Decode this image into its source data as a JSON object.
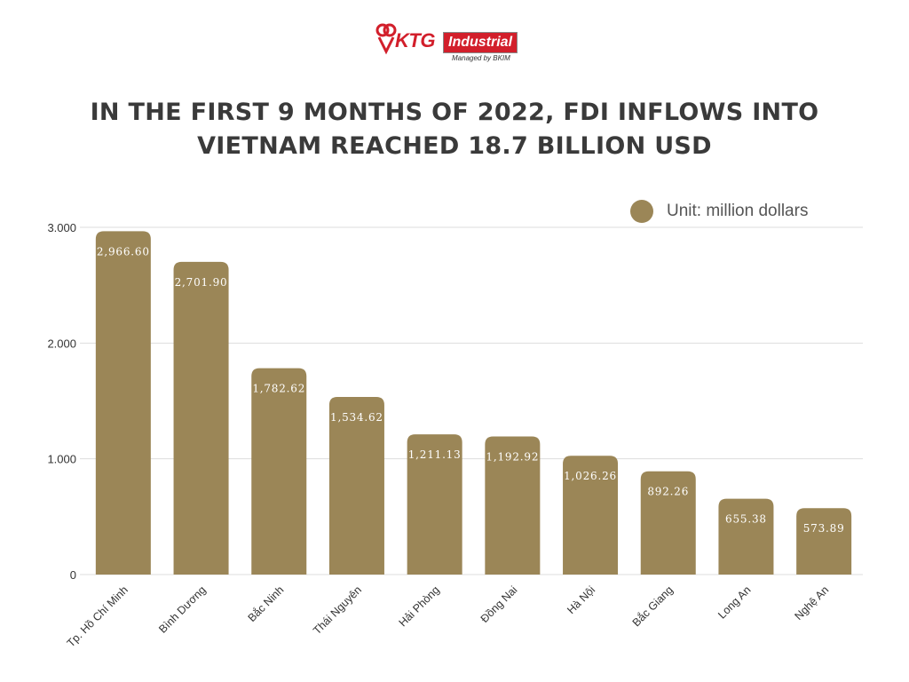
{
  "logo": {
    "brand": "KTG",
    "brand_box": "Industrial",
    "tagline": "Managed by BKIM"
  },
  "title_line1": "IN THE FIRST 9 MONTHS OF 2022, FDI INFLOWS INTO",
  "title_line2": "VIETNAM REACHED 18.7 BILLION USD",
  "legend": {
    "label": "Unit: million dollars"
  },
  "colors": {
    "bar": "#9b8657",
    "grid": "#dddddd",
    "axis_text": "#333333",
    "brand_red": "#d21f2b"
  },
  "chart_data": {
    "type": "bar",
    "title": "IN THE FIRST 9 MONTHS OF 2022, FDI INFLOWS INTO VIETNAM REACHED 18.7 BILLION USD",
    "categories": [
      "Tp. Hồ Chí Minh",
      "Bình Dương",
      "Bắc Ninh",
      "Thái Nguyên",
      "Hải Phòng",
      "Đồng Nai",
      "Hà Nội",
      "Bắc Giang",
      "Long An",
      "Nghệ An"
    ],
    "series": [
      {
        "name": "Unit: million dollars",
        "values": [
          2966.6,
          2701.9,
          1782.62,
          1534.62,
          1211.13,
          1192.92,
          1026.26,
          892.26,
          655.38,
          573.89
        ],
        "value_labels": [
          "2,966.60",
          "2,701.90",
          "1,782.62",
          "1,534.62",
          "1,211.13",
          "1,192.92",
          "1,026.26",
          "892.26",
          "655.38",
          "573.89"
        ]
      }
    ],
    "yticks": [
      0,
      1000,
      2000,
      3000
    ],
    "ytick_labels": [
      "0",
      "1.000",
      "2.000",
      "3.000"
    ],
    "ylim": [
      0,
      3000
    ],
    "xlabel": "",
    "ylabel": "",
    "grid": true,
    "legend_position": "top-right"
  }
}
